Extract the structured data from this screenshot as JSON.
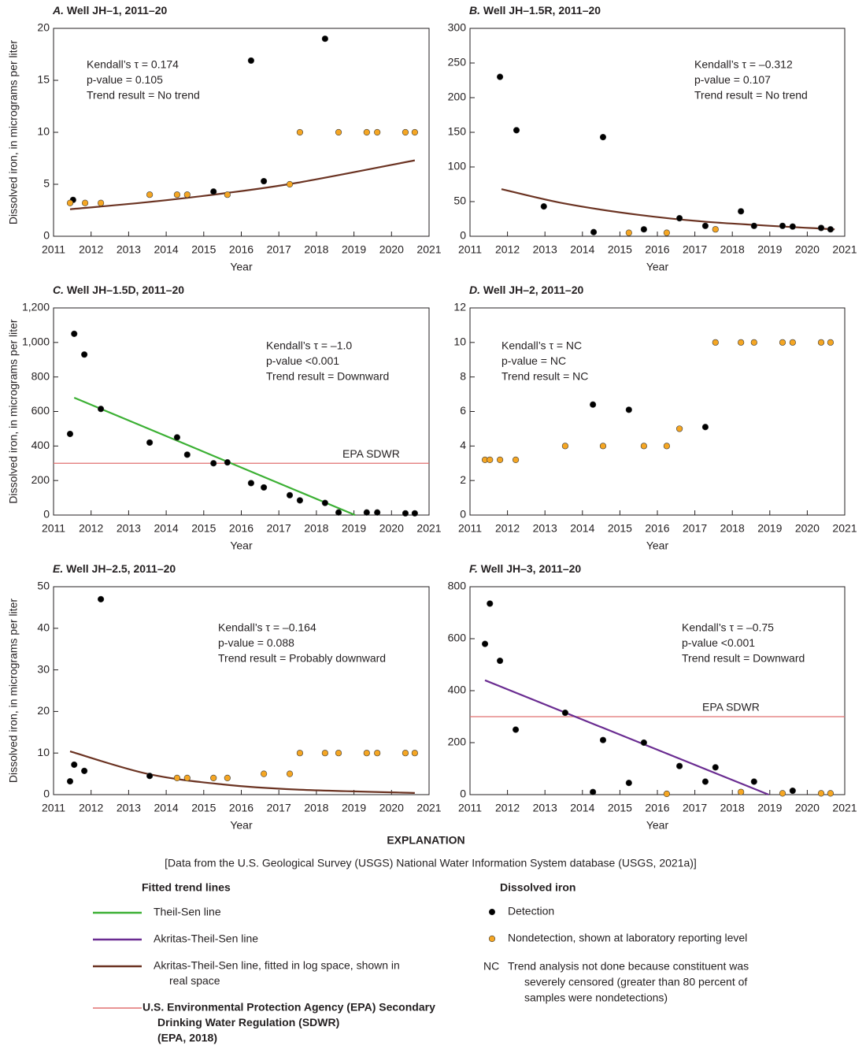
{
  "chart_data": [
    {
      "type": "scatter",
      "label": "A.",
      "title": "Well JH–1, 2011–20",
      "xlabel": "Year",
      "ylabel": "Dissolved iron, in micrograms per liter",
      "xlim": [
        2011,
        2021
      ],
      "xticks": [
        2011,
        2012,
        2013,
        2014,
        2015,
        2016,
        2017,
        2018,
        2019,
        2020,
        2021
      ],
      "ylim": [
        0,
        20
      ],
      "yticks": [
        0,
        5,
        10,
        15,
        20
      ],
      "series": [
        {
          "color": "#000000",
          "x": [
            2011.52,
            2015.26,
            2016.26,
            2016.6,
            2018.23
          ],
          "values": [
            3.5,
            4.3,
            16.9,
            5.3,
            19.0
          ]
        },
        {
          "color": "#f5a623",
          "x": [
            2011.44,
            2011.84,
            2012.26,
            2013.56,
            2014.29,
            2014.56,
            2015.63,
            2017.29,
            2017.56,
            2018.59,
            2019.34,
            2019.62,
            2020.37,
            2020.62
          ],
          "values": [
            3.2,
            3.2,
            3.2,
            4,
            4,
            4,
            4,
            5,
            10,
            10,
            10,
            10,
            10,
            10
          ]
        }
      ],
      "trend": {
        "color": "#6b3322",
        "x": [
          2011.44,
          2013.5,
          2015.5,
          2017.5,
          2020.62
        ],
        "values": [
          2.6,
          3.28,
          4.11,
          5.15,
          7.3
        ]
      },
      "annotations": [
        "Kendall’s τ = 0.174",
        "p-value = 0.105",
        "Trend result = No trend"
      ]
    },
    {
      "type": "scatter",
      "label": "B.",
      "title": "Well JH–1.5R, 2011–20",
      "xlabel": "Year",
      "xlim": [
        2011,
        2021
      ],
      "xticks": [
        2011,
        2012,
        2013,
        2014,
        2015,
        2016,
        2017,
        2018,
        2019,
        2020,
        2021
      ],
      "ylim": [
        0,
        300
      ],
      "yticks": [
        0,
        50,
        100,
        150,
        200,
        250,
        300
      ],
      "series": [
        {
          "color": "#000000",
          "x": [
            2011.8,
            2012.24,
            2012.97,
            2014.3,
            2014.55,
            2015.64,
            2016.59,
            2017.28,
            2018.23,
            2018.58,
            2019.34,
            2019.61,
            2020.37,
            2020.62
          ],
          "values": [
            230,
            153,
            43,
            6,
            143,
            10,
            26,
            15,
            36,
            15,
            15,
            14,
            12,
            10
          ]
        },
        {
          "color": "#f5a623",
          "x": [
            2015.24,
            2016.25,
            2017.55
          ],
          "values": [
            5,
            5,
            10
          ]
        }
      ],
      "trend": {
        "color": "#6b3322",
        "x": [
          2011.84,
          2013.5,
          2015.5,
          2017.5,
          2020.73
        ],
        "values": [
          68,
          47.5,
          30.9,
          20.1,
          10
        ]
      },
      "annotations": [
        "Kendall’s τ = –0.312",
        "p-value = 0.107",
        "Trend result = No trend"
      ]
    },
    {
      "type": "scatter",
      "label": "C.",
      "title": "Well JH–1.5D, 2011–20",
      "xlabel": "Year",
      "ylabel": "Dissolved iron, in micrograms per liter",
      "xlim": [
        2011,
        2021
      ],
      "xticks": [
        2011,
        2012,
        2013,
        2014,
        2015,
        2016,
        2017,
        2018,
        2019,
        2020,
        2021
      ],
      "ylim": [
        0,
        1200
      ],
      "yticks": [
        0,
        200,
        400,
        600,
        800,
        {
          "value": 1000,
          "label": "1,000"
        },
        {
          "value": 1200,
          "label": "1,200"
        }
      ],
      "series": [
        {
          "color": "#000000",
          "x": [
            2011.44,
            2011.55,
            2011.82,
            2012.26,
            2013.56,
            2014.29,
            2014.56,
            2015.26,
            2015.63,
            2016.26,
            2016.6,
            2017.29,
            2017.56,
            2018.23,
            2018.59,
            2019.34,
            2019.62,
            2020.37,
            2020.62
          ],
          "values": [
            470,
            1050,
            930,
            615,
            420,
            450,
            350,
            300,
            305,
            185,
            160,
            115,
            85,
            70,
            15,
            15,
            15,
            10,
            10
          ]
        }
      ],
      "trend": {
        "color": "#3cb034",
        "x": [
          2011.55,
          2019.03
        ],
        "values": [
          680,
          0
        ]
      },
      "reference": {
        "label": "EPA SDWR",
        "value": 300,
        "color": "#e07070"
      },
      "annotations": [
        "Kendall’s τ = –1.0",
        "p-value <0.001",
        "Trend result = Downward"
      ]
    },
    {
      "type": "scatter",
      "label": "D.",
      "title": "Well JH–2, 2011–20",
      "xlabel": "Year",
      "xlim": [
        2011,
        2021
      ],
      "xticks": [
        2011,
        2012,
        2013,
        2014,
        2015,
        2016,
        2017,
        2018,
        2019,
        2020,
        2021
      ],
      "ylim": [
        0,
        12
      ],
      "yticks": [
        0,
        2,
        4,
        6,
        8,
        10,
        12
      ],
      "series": [
        {
          "color": "#000000",
          "x": [
            2014.28,
            2015.24,
            2017.28
          ],
          "values": [
            6.4,
            6.1,
            5.1
          ]
        },
        {
          "color": "#f5a623",
          "x": [
            2011.4,
            2011.53,
            2011.8,
            2012.22,
            2013.54,
            2014.55,
            2015.64,
            2016.25,
            2016.59,
            2017.55,
            2018.23,
            2018.58,
            2019.34,
            2019.61,
            2020.37,
            2020.62
          ],
          "values": [
            3.2,
            3.2,
            3.2,
            3.2,
            4,
            4,
            4,
            4,
            5,
            10,
            10,
            10,
            10,
            10,
            10,
            10
          ]
        }
      ],
      "annotations": [
        "Kendall’s τ = NC",
        "p-value = NC",
        "Trend result = NC"
      ]
    },
    {
      "type": "scatter",
      "label": "E.",
      "title": "Well JH–2.5, 2011–20",
      "xlabel": "Year",
      "ylabel": "Dissolved iron, in micrograms per liter",
      "xlim": [
        2011,
        2021
      ],
      "xticks": [
        2011,
        2012,
        2013,
        2014,
        2015,
        2016,
        2017,
        2018,
        2019,
        2020,
        2021
      ],
      "ylim": [
        0,
        50
      ],
      "yticks": [
        0,
        10,
        20,
        30,
        40,
        50
      ],
      "series": [
        {
          "color": "#000000",
          "x": [
            2011.44,
            2011.55,
            2011.82,
            2012.26,
            2013.56
          ],
          "values": [
            3.2,
            7.2,
            5.7,
            47,
            4.5
          ]
        },
        {
          "color": "#f5a623",
          "x": [
            2014.29,
            2014.56,
            2015.26,
            2015.63,
            2016.6,
            2017.29,
            2017.56,
            2018.23,
            2018.59,
            2019.34,
            2019.62,
            2020.37,
            2020.62
          ],
          "values": [
            4,
            4,
            4,
            4,
            5,
            5,
            10,
            10,
            10,
            10,
            10,
            10,
            10
          ]
        }
      ],
      "trend": {
        "color": "#6b3322",
        "x": [
          2011.44,
          2013.5,
          2015.5,
          2017.5,
          2020.62
        ],
        "values": [
          10.4,
          5.0,
          2.46,
          1.21,
          0.4
        ]
      },
      "annotations": [
        "Kendall’s τ = –0.164",
        "p-value = 0.088",
        "Trend result = Probably downward"
      ]
    },
    {
      "type": "scatter",
      "label": "F.",
      "title": "Well JH–3, 2011–20",
      "xlabel": "Year",
      "xlim": [
        2011,
        2021
      ],
      "xticks": [
        2011,
        2012,
        2013,
        2014,
        2015,
        2016,
        2017,
        2018,
        2019,
        2020,
        2021
      ],
      "ylim": [
        0,
        800
      ],
      "yticks": [
        0,
        200,
        400,
        600,
        800
      ],
      "series": [
        {
          "color": "#000000",
          "x": [
            2011.4,
            2011.53,
            2011.8,
            2012.22,
            2013.54,
            2014.28,
            2014.55,
            2015.24,
            2015.64,
            2016.59,
            2017.28,
            2017.55,
            2018.58,
            2019.61
          ],
          "values": [
            580,
            735,
            515,
            250,
            315,
            10,
            210,
            45,
            200,
            110,
            50,
            105,
            50,
            15
          ]
        },
        {
          "color": "#f5a623",
          "x": [
            2016.25,
            2018.23,
            2019.34,
            2020.37,
            2020.62
          ],
          "values": [
            3,
            10,
            5,
            5,
            5
          ]
        }
      ],
      "trend": {
        "color": "#6a2c91",
        "x": [
          2011.4,
          2018.97
        ],
        "values": [
          440,
          0
        ]
      },
      "reference": {
        "label": "EPA SDWR",
        "value": 300,
        "color": "#e07070"
      },
      "annotations": [
        "Kendall’s τ = –0.75",
        "p-value <0.001",
        "Trend result = Downward"
      ]
    }
  ],
  "explanation": {
    "title": "EXPLANATION",
    "note": "[Data from the U.S. Geological Survey (USGS) National Water Information System database (USGS, 2021a)]",
    "trend_heading": "Fitted trend lines",
    "trend_items": [
      {
        "color": "#3cb034",
        "label": [
          "Theil-Sen line"
        ]
      },
      {
        "color": "#6a2c91",
        "label": [
          "Akritas-Theil-Sen line"
        ]
      },
      {
        "color": "#6b3322",
        "label": [
          "Akritas-Theil-Sen line, fitted in log space, shown in",
          "real space"
        ]
      },
      {
        "color": "#e07070",
        "bold": true,
        "label": [
          "U.S. Environmental Protection Agency (EPA) Secondary",
          "Drinking Water Regulation (SDWR)",
          "(EPA, 2018)"
        ]
      }
    ],
    "point_heading": "Dissolved iron",
    "point_items": [
      {
        "color": "#000000",
        "label": [
          "Detection"
        ]
      },
      {
        "color": "#f5a623",
        "label": [
          "Nondetection, shown at laboratory reporting level"
        ]
      }
    ],
    "nc": {
      "symbol": "NC",
      "label": [
        "Trend analysis not done because constituent was",
        "severely censored (greater than 80 percent of",
        "samples were nondetections)"
      ]
    }
  }
}
